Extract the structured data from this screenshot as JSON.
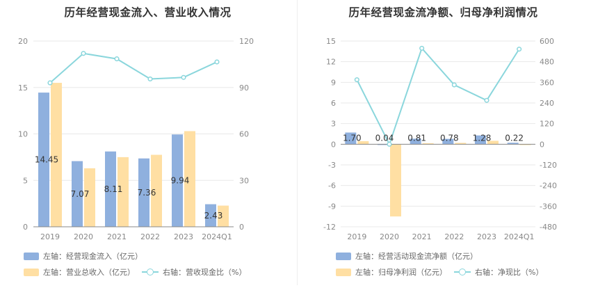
{
  "colors": {
    "bar1": "#8fb0de",
    "bar2": "#ffdfa3",
    "line": "#8ad6dc",
    "grid": "#e8e8e8",
    "axis": "#888888",
    "tick": "#888888"
  },
  "chart_data": [
    {
      "type": "bar",
      "title": "历年经营现金流入、营业收入情况",
      "categories": [
        "2019",
        "2020",
        "2021",
        "2022",
        "2023",
        "2024Q1"
      ],
      "series": [
        {
          "name": "左轴：经营现金流入（亿元）",
          "axis": "left",
          "kind": "bar",
          "values": [
            14.45,
            7.07,
            8.11,
            7.36,
            9.94,
            2.43
          ],
          "labels": [
            "14.45",
            "7.07",
            "8.11",
            "7.36",
            "9.94",
            "2.43"
          ]
        },
        {
          "name": "左轴：营业总收入（亿元）",
          "axis": "left",
          "kind": "bar",
          "values": [
            15.5,
            6.3,
            7.5,
            7.75,
            10.3,
            2.28
          ]
        },
        {
          "name": "右轴：营收现金比（%）",
          "axis": "right",
          "kind": "line",
          "values": [
            93,
            112,
            108.5,
            95.5,
            96.5,
            106.5
          ]
        }
      ],
      "left_axis": {
        "min": 0,
        "max": 20,
        "ticks": [
          "0",
          "5",
          "10",
          "15",
          "20"
        ]
      },
      "right_axis": {
        "min": 0,
        "max": 120,
        "ticks": [
          "0",
          "30",
          "60",
          "90",
          "120"
        ]
      },
      "legend": [
        {
          "label": "左轴：经营现金流入（亿元）",
          "marker": "bar1"
        },
        {
          "label": "左轴：营业总收入（亿元）",
          "marker": "bar2"
        },
        {
          "label": "右轴：营收现金比（%）",
          "marker": "line"
        }
      ]
    },
    {
      "type": "bar",
      "title": "历年经营现金流净额、归母净利润情况",
      "categories": [
        "2019",
        "2020",
        "2021",
        "2022",
        "2023",
        "2024Q1"
      ],
      "series": [
        {
          "name": "左轴：经营活动现金流净额（亿元）",
          "axis": "left",
          "kind": "bar",
          "values": [
            1.7,
            0.04,
            0.81,
            0.78,
            1.28,
            0.22
          ],
          "labels": [
            "1.70",
            "0.04",
            "0.81",
            "0.78",
            "1.28",
            "0.22"
          ]
        },
        {
          "name": "左轴：归母净利润（亿元）",
          "axis": "left",
          "kind": "bar",
          "values": [
            0.45,
            -10.5,
            0.15,
            0.2,
            0.5,
            0.03
          ]
        },
        {
          "name": "右轴：净现比（%）",
          "axis": "right",
          "kind": "line",
          "values": [
            375,
            0,
            558,
            345,
            255,
            553
          ]
        }
      ],
      "left_axis": {
        "min": -12,
        "max": 15,
        "ticks": [
          "-12",
          "-9",
          "-6",
          "-3",
          "0",
          "3",
          "6",
          "9",
          "12",
          "15"
        ]
      },
      "right_axis": {
        "min": -480,
        "max": 600,
        "ticks": [
          "-480",
          "-360",
          "-240",
          "-120",
          "0",
          "120",
          "240",
          "360",
          "480",
          "600"
        ]
      },
      "legend": [
        {
          "label": "左轴：经营活动现金流净额（亿元）",
          "marker": "bar1"
        },
        {
          "label": "左轴：归母净利润（亿元）",
          "marker": "bar2"
        },
        {
          "label": "右轴：净现比（%）",
          "marker": "line"
        }
      ]
    }
  ]
}
